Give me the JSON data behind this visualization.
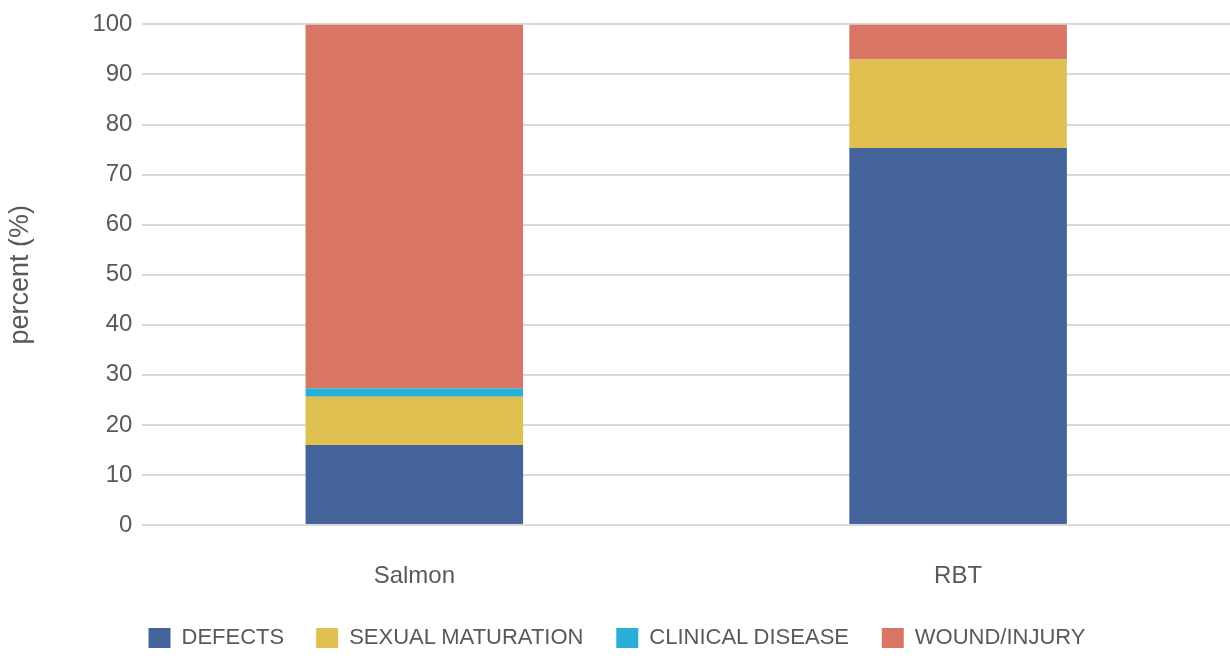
{
  "chart_data": {
    "type": "bar",
    "stacked": true,
    "categories": [
      "Salmon",
      "RBT"
    ],
    "series": [
      {
        "name": "DEFECTS",
        "color": "#43639a",
        "values": [
          16.0,
          75.3
        ]
      },
      {
        "name": "SEXUAL MATURATION",
        "color": "#e0c050",
        "values": [
          9.6,
          17.7
        ]
      },
      {
        "name": "CLINICAL DISEASE",
        "color": "#2ab0d4",
        "values": [
          1.7,
          0
        ]
      },
      {
        "name": "WOUND/INJURY",
        "color": "#d97565",
        "values": [
          72.7,
          7.0
        ]
      }
    ],
    "ylabel": "percent (%)",
    "ylim": [
      0,
      100
    ],
    "yticks": [
      0,
      10,
      20,
      30,
      40,
      50,
      60,
      70,
      80,
      90,
      100
    ],
    "grid": "y",
    "legend": "bottom"
  }
}
